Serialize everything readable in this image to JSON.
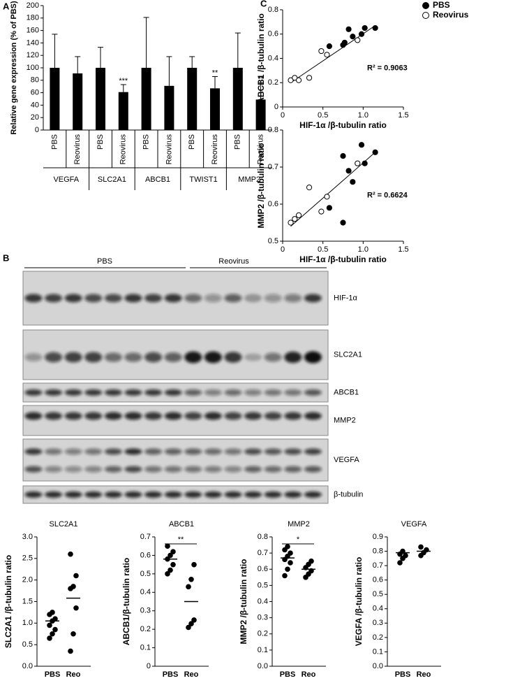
{
  "chart_data": [
    {
      "type": "bar",
      "panel": "A",
      "ylabel": "Relative gene expression (% of PBS)",
      "categories": [
        "PBS",
        "Reovirus",
        "PBS",
        "Reovirus",
        "PBS",
        "Reovirus",
        "PBS",
        "Reovirus",
        "PBS",
        "Reovirus"
      ],
      "groups": [
        "VEGFA",
        "SLC2A1",
        "ABCB1",
        "TWIST1",
        "MMP2"
      ],
      "values": [
        100,
        91,
        100,
        61,
        100,
        71,
        100,
        67,
        100,
        49
      ],
      "errors": [
        54,
        27,
        33,
        12,
        81,
        47,
        18,
        19,
        56,
        27
      ],
      "significance": [
        null,
        null,
        null,
        "***",
        null,
        null,
        null,
        "**",
        null,
        "**"
      ],
      "color": "#000000",
      "ylim": [
        0,
        200
      ],
      "yticks": [
        0,
        20,
        40,
        60,
        80,
        100,
        120,
        140,
        160,
        180,
        200
      ]
    },
    {
      "type": "scatter",
      "panel": "C",
      "xlabel": "HIF-1α /β-tubulin  ratio",
      "ylabel": "ABCB1 /β-tubulin  ratio",
      "annotation": "R² = 0.9063",
      "legend": "upper right",
      "series": [
        {
          "name": "PBS",
          "color": "#000000",
          "filled": true,
          "x": [
            0.58,
            0.75,
            0.77,
            0.82,
            0.87,
            0.98,
            1.02,
            1.15
          ],
          "y": [
            0.5,
            0.51,
            0.53,
            0.64,
            0.58,
            0.6,
            0.65,
            0.65
          ]
        },
        {
          "name": "Reovirus",
          "color": "#000000",
          "filled": false,
          "x": [
            0.1,
            0.15,
            0.2,
            0.33,
            0.48,
            0.55,
            0.93
          ],
          "y": [
            0.22,
            0.24,
            0.22,
            0.24,
            0.46,
            0.43,
            0.55
          ]
        }
      ],
      "trendline": {
        "x": [
          0.1,
          1.15
        ],
        "y": [
          0.2,
          0.67
        ]
      },
      "xlim": [
        0,
        1.5
      ],
      "xticks": [
        0,
        0.5,
        {
          "value": 1,
          "label": "1.0"
        },
        1.5
      ],
      "ylim": [
        0,
        0.8
      ],
      "yticks": [
        0,
        0.2,
        0.4,
        0.6,
        0.8
      ]
    },
    {
      "type": "scatter",
      "xlabel": "HIF-1α /β-tubulin  ratio",
      "ylabel": "MMP2 /β-tubulin  ratio",
      "annotation": "R² = 0.6624",
      "series": [
        {
          "color": "#000000",
          "filled": true,
          "x": [
            0.58,
            0.75,
            0.75,
            0.82,
            0.87,
            0.98,
            1.02,
            1.15
          ],
          "y": [
            0.59,
            0.73,
            0.55,
            0.69,
            0.66,
            0.76,
            0.71,
            0.74
          ]
        },
        {
          "color": "#000000",
          "filled": false,
          "x": [
            0.1,
            0.15,
            0.2,
            0.33,
            0.48,
            0.55,
            0.93
          ],
          "y": [
            0.55,
            0.56,
            0.57,
            0.645,
            0.58,
            0.62,
            0.71
          ]
        }
      ],
      "trendline": {
        "x": [
          0.1,
          1.15
        ],
        "y": [
          0.54,
          0.74
        ]
      },
      "xlim": [
        0,
        1.5
      ],
      "xticks": [
        0,
        0.5,
        {
          "value": 1,
          "label": "1.0"
        },
        1.5
      ],
      "ylim": [
        0.5,
        0.8
      ],
      "yticks": [
        0.5,
        0.6,
        0.7,
        0.8
      ]
    },
    {
      "type": "strip",
      "title": "SLC2A1",
      "ylabel": "SLC2A1 /β-tubulin  ratio",
      "categories": [
        "PBS",
        "Reo"
      ],
      "series": [
        {
          "values": [
            0.65,
            0.75,
            0.85,
            0.95,
            1.05,
            1.1,
            1.2,
            1.25
          ],
          "mean": 1.05
        },
        {
          "values": [
            0.35,
            0.75,
            1.35,
            1.8,
            1.85,
            2.1,
            2.6
          ],
          "mean": 1.58
        }
      ],
      "ylim": [
        0,
        3
      ],
      "yticks": [
        {
          "value": 0,
          "label": "0.0"
        },
        0.5,
        {
          "value": 1,
          "label": "1.0"
        },
        1.5,
        {
          "value": 2,
          "label": "2.0"
        },
        2.5,
        {
          "value": 3,
          "label": "3.0"
        }
      ]
    },
    {
      "type": "strip",
      "title": "ABCB1",
      "ylabel": "ABCB1/β-tubulin  ratio",
      "categories": [
        "PBS",
        "Reo"
      ],
      "significance": "**",
      "series": [
        {
          "values": [
            0.5,
            0.52,
            0.55,
            0.58,
            0.6,
            0.62,
            0.65
          ],
          "mean": 0.58
        },
        {
          "values": [
            0.21,
            0.23,
            0.25,
            0.43,
            0.47,
            0.55
          ],
          "mean": 0.35
        }
      ],
      "ylim": [
        0,
        0.7
      ],
      "yticks": [
        0,
        0.1,
        0.2,
        0.3,
        0.4,
        0.5,
        0.6,
        0.7
      ]
    },
    {
      "type": "strip",
      "title": "MMP2",
      "ylabel": "MMP2 /β-tubulin  ratio",
      "categories": [
        "PBS",
        "Reo"
      ],
      "significance": "*",
      "series": [
        {
          "values": [
            0.56,
            0.6,
            0.64,
            0.66,
            0.68,
            0.7,
            0.72,
            0.74
          ],
          "mean": 0.67
        },
        {
          "values": [
            0.55,
            0.57,
            0.59,
            0.61,
            0.63,
            0.65
          ],
          "mean": 0.6
        }
      ],
      "ylim": [
        0,
        0.8
      ],
      "yticks": [
        {
          "value": 0,
          "label": "0.0"
        },
        0.1,
        0.2,
        0.3,
        0.4,
        0.5,
        0.6,
        0.7,
        0.8
      ]
    },
    {
      "type": "strip",
      "title": "VEGFA",
      "ylabel": "VEGFA /β-tubulin  ratio",
      "categories": [
        "PBS",
        "Reo"
      ],
      "series": [
        {
          "values": [
            0.72,
            0.75,
            0.77,
            0.78,
            0.8
          ],
          "mean": 0.79
        },
        {
          "values": [
            0.77,
            0.79,
            0.81,
            0.83
          ],
          "mean": 0.8
        }
      ],
      "ylim": [
        0,
        0.9
      ],
      "yticks": [
        {
          "value": 0,
          "label": "0.0"
        },
        0.1,
        0.2,
        0.3,
        0.4,
        0.5,
        0.6,
        0.7,
        0.8,
        0.9
      ]
    }
  ],
  "blot": {
    "panel": "B",
    "groups": [
      "PBS",
      "Reovirus"
    ],
    "rows": [
      "HIF-1α",
      "SLC2A1",
      "ABCB1",
      "MMP2",
      "VEGFA",
      "β-tubulin"
    ]
  }
}
